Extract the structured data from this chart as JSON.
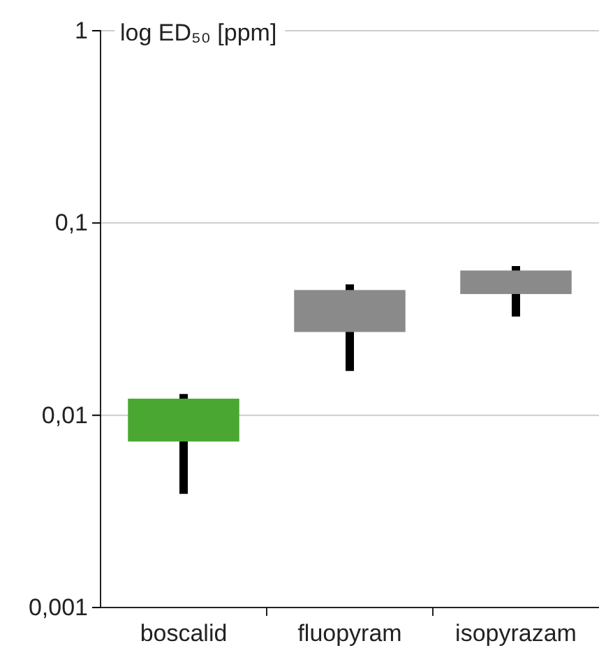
{
  "chart_data": {
    "type": "bar",
    "ylabel": "log ED₅₀ [ppm]",
    "log": true,
    "grid": "y",
    "categories": [
      "boscalid",
      "fluopyram",
      "isopyrazam"
    ],
    "base": [
      0.0073,
      0.0271,
      0.0427
    ],
    "values": [
      0.0049,
      0.0177,
      0.0139
    ],
    "errors": [
      [
        0.0039,
        0.0129
      ],
      [
        0.017,
        0.0479
      ],
      [
        0.0326,
        0.0597
      ]
    ],
    "colors": [
      "#4aa832",
      "#8a8a8a",
      "#8a8a8a"
    ],
    "ylim": [
      0.001,
      1
    ],
    "yticks": [
      {
        "value": 0.001,
        "label": "0,001"
      },
      {
        "value": 0.01,
        "label": "0,01"
      },
      {
        "value": 0.1,
        "label": "0,1"
      },
      {
        "value": 1,
        "label": "1"
      }
    ]
  }
}
